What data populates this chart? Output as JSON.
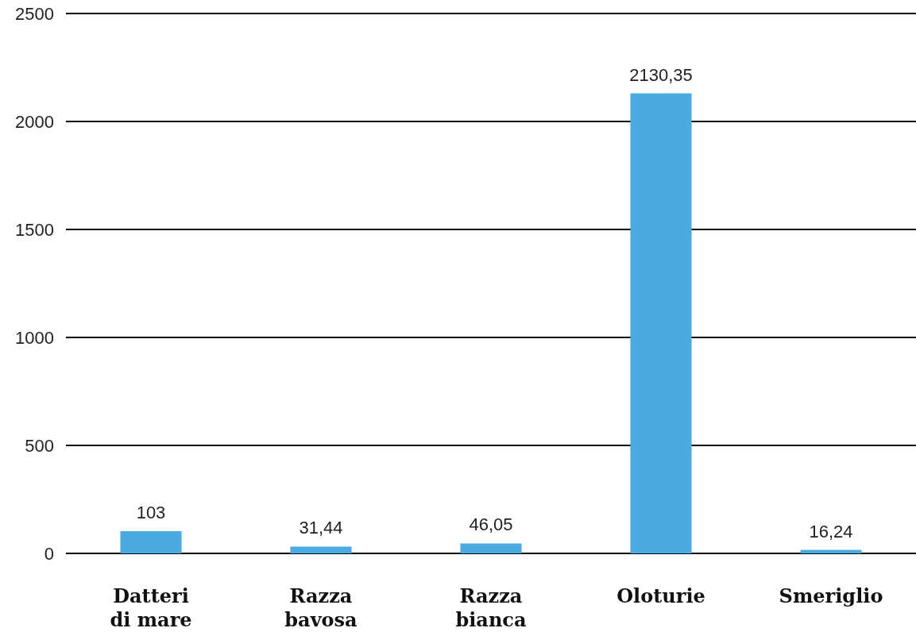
{
  "chart_data": {
    "type": "bar",
    "categories": [
      "Datteri di mare",
      "Razza bavosa",
      "Razza bianca",
      "Oloturie",
      "Smeriglio"
    ],
    "values": [
      103,
      31.44,
      46.05,
      2130.35,
      16.24
    ],
    "value_labels": [
      "103",
      "31,44",
      "46,05",
      "2130,35",
      "16,24"
    ],
    "color": "#4aabe0",
    "ylim": [
      0,
      2500
    ],
    "yticks": [
      0,
      500,
      1000,
      1500,
      2000,
      2500
    ],
    "grid": "y"
  }
}
